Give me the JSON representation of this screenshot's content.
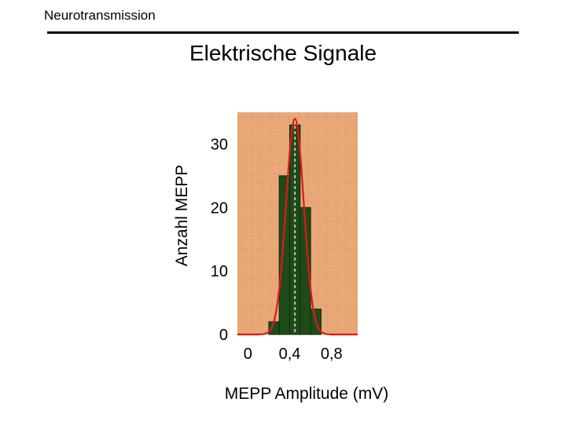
{
  "header": {
    "section_label": "Neurotransmission",
    "slide_title": "Elektrische Signale"
  },
  "colors": {
    "plot_background": "#E8A878",
    "bar_fill": "#1F4A1A",
    "fit_curve": "#E01818",
    "center_line": "#F0E0C8"
  },
  "chart_data": {
    "type": "bar",
    "title": "",
    "xlabel": "MEPP Amplitude (mV)",
    "ylabel": "Anzahl MEPP",
    "x_ticks": [
      {
        "value": 0,
        "label": "0"
      },
      {
        "value": 0.4,
        "label": "0,4"
      },
      {
        "value": 0.8,
        "label": "0,8"
      }
    ],
    "y_ticks": [
      {
        "value": 0,
        "label": "0"
      },
      {
        "value": 10,
        "label": "10"
      },
      {
        "value": 20,
        "label": "20"
      },
      {
        "value": 30,
        "label": "30"
      }
    ],
    "xlim": [
      -0.1,
      1.05
    ],
    "ylim": [
      0,
      35
    ],
    "bins": [
      {
        "x0": 0.2,
        "x1": 0.3,
        "count": 2
      },
      {
        "x0": 0.3,
        "x1": 0.4,
        "count": 25
      },
      {
        "x0": 0.4,
        "x1": 0.5,
        "count": 33
      },
      {
        "x0": 0.5,
        "x1": 0.6,
        "count": 20
      },
      {
        "x0": 0.6,
        "x1": 0.7,
        "count": 4
      }
    ],
    "fit": {
      "type": "gaussian",
      "mean": 0.45,
      "sd": 0.085,
      "peak": 34
    },
    "mean_line_x": 0.45,
    "grid": true
  }
}
